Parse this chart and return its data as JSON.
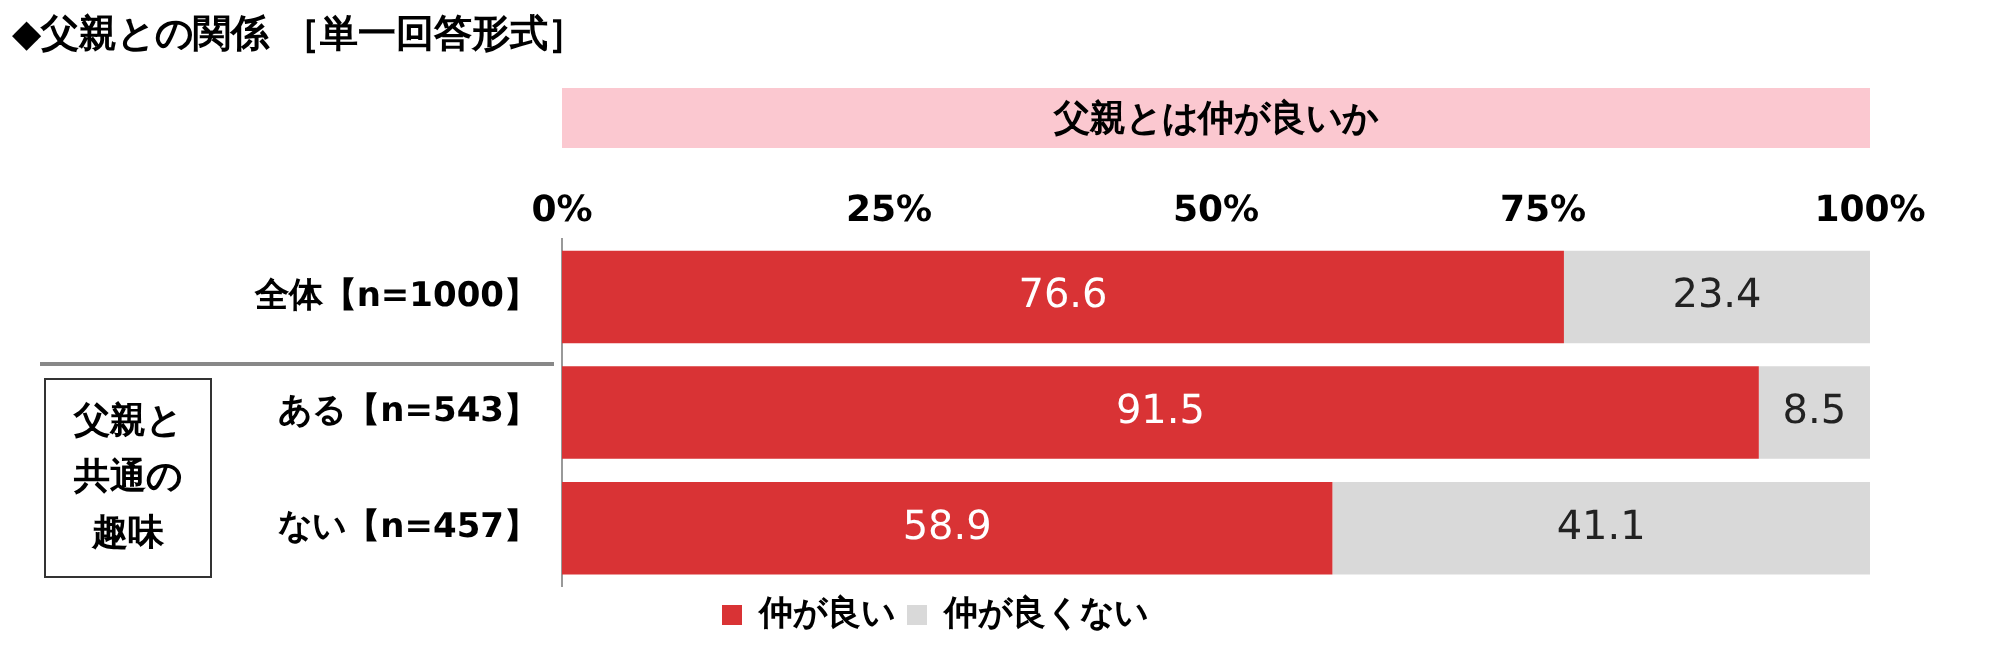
{
  "chart_data": {
    "type": "bar",
    "title": "◆父親との関係 ［単一回答形式］",
    "subtitle": "父親とは仲が良いか",
    "orientation": "horizontal",
    "stacked": true,
    "data_labels": true,
    "legend": "bottom",
    "categories": [
      "全体【n=1000】",
      "ある【n=543】",
      "ない【n=457】"
    ],
    "series": [
      {
        "name": "仲が良い",
        "color": "#d93335",
        "values": [
          76.6,
          91.5,
          58.9
        ]
      },
      {
        "name": "仲が良くない",
        "color": "#d9d9d9",
        "values": [
          23.4,
          8.5,
          41.1
        ]
      }
    ],
    "xlim": [
      0,
      100
    ],
    "xticks": [
      {
        "value": 0,
        "label": "0%"
      },
      {
        "value": 25,
        "label": "25%"
      },
      {
        "value": 50,
        "label": "50%"
      },
      {
        "value": 75,
        "label": "75%"
      },
      {
        "value": 100,
        "label": "100%"
      }
    ],
    "annotations": [
      "父親と共通の趣味"
    ]
  }
}
